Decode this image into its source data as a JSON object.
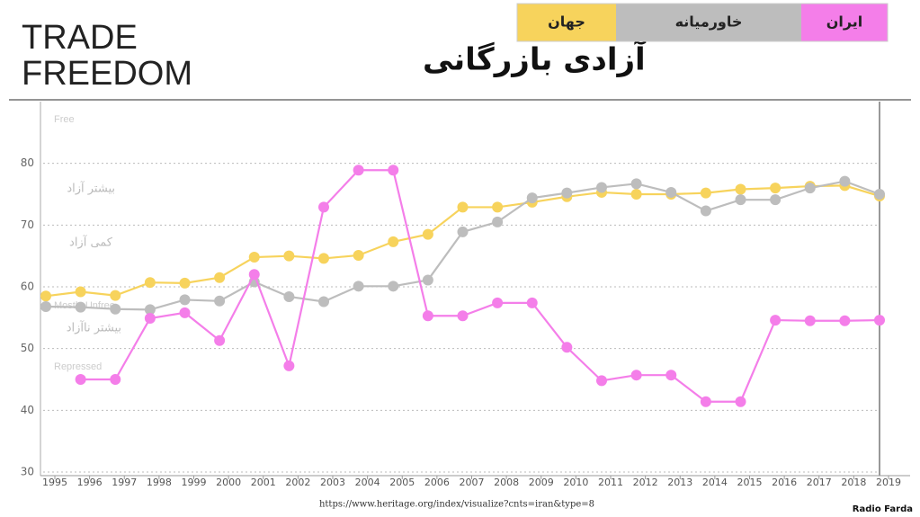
{
  "chart_data": {
    "type": "line",
    "title": "TRADE FREEDOM",
    "subtitle": "آزادی بازرگانی",
    "x": [
      1995,
      1996,
      1997,
      1998,
      1999,
      2000,
      2001,
      2002,
      2003,
      2004,
      2005,
      2006,
      2007,
      2008,
      2009,
      2010,
      2011,
      2012,
      2013,
      2014,
      2015,
      2016,
      2017,
      2018,
      2019
    ],
    "series": [
      {
        "name": "ایران",
        "color": "#f47ee9",
        "values": [
          null,
          45,
          45,
          54.9,
          55.8,
          51.3,
          62,
          47.2,
          72.9,
          78.9,
          78.9,
          55.3,
          55.3,
          57.4,
          57.4,
          50.2,
          44.8,
          45.7,
          45.7,
          41.4,
          41.4,
          54.6,
          54.5,
          54.5,
          54.6
        ]
      },
      {
        "name": "خاورمیانه",
        "color": "#bdbdbd",
        "values": [
          56.8,
          56.7,
          56.4,
          56.3,
          57.9,
          57.7,
          60.8,
          58.4,
          57.6,
          60.1,
          60.1,
          61.1,
          68.9,
          70.5,
          74.4,
          75.2,
          76.1,
          76.7,
          75.3,
          72.3,
          74.1,
          74.1,
          76,
          77.1,
          75
        ]
      },
      {
        "name": "جهان",
        "color": "#f7d35c",
        "values": [
          58.5,
          59.2,
          58.6,
          60.7,
          60.6,
          61.5,
          64.8,
          65,
          64.6,
          65.1,
          67.3,
          68.5,
          72.9,
          72.9,
          73.7,
          74.6,
          75.3,
          75,
          75,
          75.2,
          75.8,
          76,
          76.3,
          76.4,
          74.7
        ]
      }
    ],
    "xlim": [
      1995,
      2019
    ],
    "xticks": [
      1995,
      1996,
      1997,
      1998,
      1999,
      2000,
      2001,
      2002,
      2003,
      2004,
      2005,
      2006,
      2007,
      2008,
      2009,
      2010,
      2011,
      2012,
      2013,
      2014,
      2015,
      2016,
      2017,
      2018,
      2019
    ],
    "ylim": [
      30,
      90
    ],
    "yticks": [
      30,
      40,
      50,
      60,
      70,
      80
    ],
    "grid": true,
    "annotations": [
      "Free",
      "بیشتر آزاد",
      "کمی آزاد",
      "Mostly Unfree",
      "بیشتر ناآزاد",
      "Repressed"
    ],
    "source": "https://www.heritage.org/index/visualize?cnts=iran&type=8",
    "credit": "Radio Farda"
  }
}
